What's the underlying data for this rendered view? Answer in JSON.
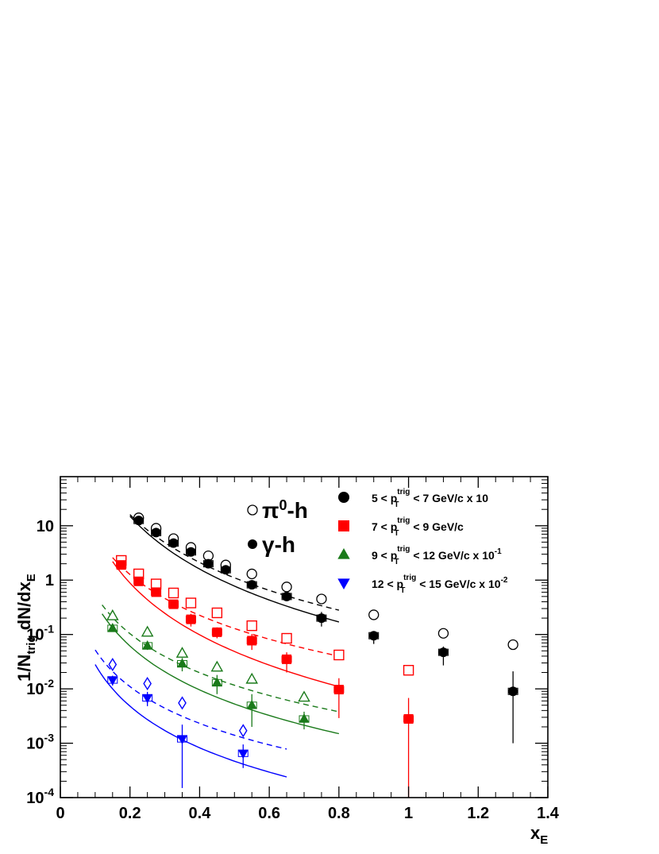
{
  "chart_data": {
    "type": "scatter",
    "x_axis": {
      "title": "x",
      "title_sub": "E",
      "range": [
        0,
        1.4
      ],
      "scale": "linear",
      "tick_labels": [
        "0",
        "0.2",
        "0.4",
        "0.6",
        "0.8",
        "1",
        "1.2",
        "1.4"
      ]
    },
    "y_axis": {
      "title": "1/N",
      "title_sub": "trig",
      "title_rest": " dN/dx",
      "title_sub2": "E",
      "range": [
        0.0001,
        80
      ],
      "scale": "log",
      "tick_labels": [
        {
          "base": "10",
          "exp": "-4",
          "value": 0.0001
        },
        {
          "base": "10",
          "exp": "-3",
          "value": 0.001
        },
        {
          "base": "10",
          "exp": "-2",
          "value": 0.01
        },
        {
          "base": "10",
          "exp": "-1",
          "value": 0.1
        },
        {
          "base": "1",
          "exp": "",
          "value": 1
        },
        {
          "base": "10",
          "exp": "",
          "value": 10
        }
      ]
    },
    "grid": false,
    "marker_legend": {
      "open": {
        "label_pre": "π",
        "label_sup": "0",
        "label_post": "-h"
      },
      "filled": {
        "label_pre": "γ",
        "label_sup": "",
        "label_post": "-h"
      }
    },
    "series": [
      {
        "name_pre": "5 < p",
        "name_sub": "T",
        "name_sup": "trig",
        "name_mid": " < 7 GeV/c x 10",
        "name_exp": "",
        "color": "#000000",
        "marker": "circle",
        "pi0_h": {
          "x": [
            0.225,
            0.275,
            0.325,
            0.375,
            0.425,
            0.475,
            0.55,
            0.65,
            0.75,
            0.9,
            1.1,
            1.3
          ],
          "y": [
            14,
            9,
            5.8,
            4.0,
            2.8,
            1.9,
            1.3,
            0.75,
            0.45,
            0.23,
            0.105,
            0.065
          ]
        },
        "gamma_h": {
          "x": [
            0.225,
            0.275,
            0.325,
            0.375,
            0.425,
            0.475,
            0.55,
            0.65,
            0.75,
            0.9,
            1.1,
            1.3
          ],
          "y": [
            12.5,
            7.5,
            4.8,
            3.3,
            2.0,
            1.55,
            0.82,
            0.5,
            0.2,
            0.095,
            0.047,
            0.009
          ],
          "err_up": [
            0,
            0,
            0,
            0,
            0,
            0,
            0,
            0,
            0.06,
            0.02,
            0.013,
            0.012
          ],
          "err_down": [
            0,
            0,
            0,
            0,
            0,
            0,
            0,
            0,
            0.06,
            0.028,
            0.02,
            0.008
          ]
        },
        "fit_pi0": {
          "x": [
            0.2,
            0.8
          ],
          "y": [
            16,
            0.28
          ]
        },
        "fit_gamma": {
          "x": [
            0.2,
            0.8
          ],
          "y": [
            15,
            0.17
          ]
        }
      },
      {
        "name_pre": "7 < p",
        "name_sub": "T",
        "name_sup": "trig",
        "name_mid": " < 9 GeV/c",
        "name_exp": "",
        "color": "#ff0000",
        "marker": "square",
        "pi0_h": {
          "x": [
            0.175,
            0.225,
            0.275,
            0.325,
            0.375,
            0.45,
            0.55,
            0.65,
            0.8,
            1.0
          ],
          "y": [
            2.3,
            1.3,
            0.85,
            0.58,
            0.38,
            0.25,
            0.145,
            0.085,
            0.042,
            0.022
          ]
        },
        "gamma_h": {
          "x": [
            0.175,
            0.225,
            0.275,
            0.325,
            0.375,
            0.45,
            0.55,
            0.65,
            0.8,
            1.0
          ],
          "y": [
            1.9,
            0.95,
            0.6,
            0.36,
            0.19,
            0.11,
            0.077,
            0.035,
            0.0097,
            0.0028
          ],
          "err_up": [
            0,
            0,
            0,
            0,
            0.05,
            0.025,
            0.025,
            0.012,
            0.006,
            0.004
          ],
          "err_down": [
            0,
            0,
            0,
            0,
            0.05,
            0.025,
            0.025,
            0.015,
            0.0068,
            0.0027
          ]
        },
        "fit_pi0": {
          "x": [
            0.15,
            0.8
          ],
          "y": [
            2.6,
            0.04
          ]
        },
        "fit_gamma": {
          "x": [
            0.15,
            0.8
          ],
          "y": [
            2.2,
            0.011
          ]
        }
      },
      {
        "name_pre": "9 < p",
        "name_sub": "T",
        "name_sup": "trig",
        "name_mid": " < 12 GeV/c x 10",
        "name_exp": "-1",
        "color": "#1a7a1a",
        "marker": "triangle-up",
        "pi0_h": {
          "x": [
            0.15,
            0.25,
            0.35,
            0.45,
            0.55,
            0.7
          ],
          "y": [
            0.22,
            0.11,
            0.045,
            0.025,
            0.015,
            0.007
          ]
        },
        "gamma_h": {
          "x": [
            0.15,
            0.25,
            0.35,
            0.45,
            0.55,
            0.7
          ],
          "y": [
            0.13,
            0.062,
            0.029,
            0.013,
            0.005,
            0.0028
          ],
          "err_up": [
            0,
            0.01,
            0.008,
            0.005,
            0.003,
            0.001
          ],
          "err_down": [
            0,
            0.01,
            0.008,
            0.005,
            0.003,
            0.001
          ]
        },
        "fit_pi0": {
          "x": [
            0.12,
            0.8
          ],
          "y": [
            0.35,
            0.0038
          ]
        },
        "fit_gamma": {
          "x": [
            0.12,
            0.8
          ],
          "y": [
            0.24,
            0.0015
          ]
        }
      },
      {
        "name_pre": "12 < p",
        "name_sub": "T",
        "name_sup": "trig",
        "name_mid": " < 15 GeV/c x 10",
        "name_exp": "-2",
        "color": "#0000ff",
        "marker": "triangle-down",
        "pi0_h": {
          "x": [
            0.15,
            0.25,
            0.35,
            0.525
          ],
          "y": [
            0.028,
            0.0125,
            0.0055,
            0.0017
          ]
        },
        "gamma_h": {
          "x": [
            0.15,
            0.25,
            0.35,
            0.525
          ],
          "y": [
            0.0145,
            0.0068,
            0.0012,
            0.00065
          ],
          "err_up": [
            0.003,
            0.002,
            0.001,
            0.0003
          ],
          "err_down": [
            0.003,
            0.002,
            0.00105,
            0.0003
          ]
        },
        "fit_pi0": {
          "x": [
            0.1,
            0.65
          ],
          "y": [
            0.052,
            0.00078
          ]
        },
        "fit_gamma": {
          "x": [
            0.1,
            0.65
          ],
          "y": [
            0.028,
            0.00024
          ]
        }
      }
    ]
  }
}
